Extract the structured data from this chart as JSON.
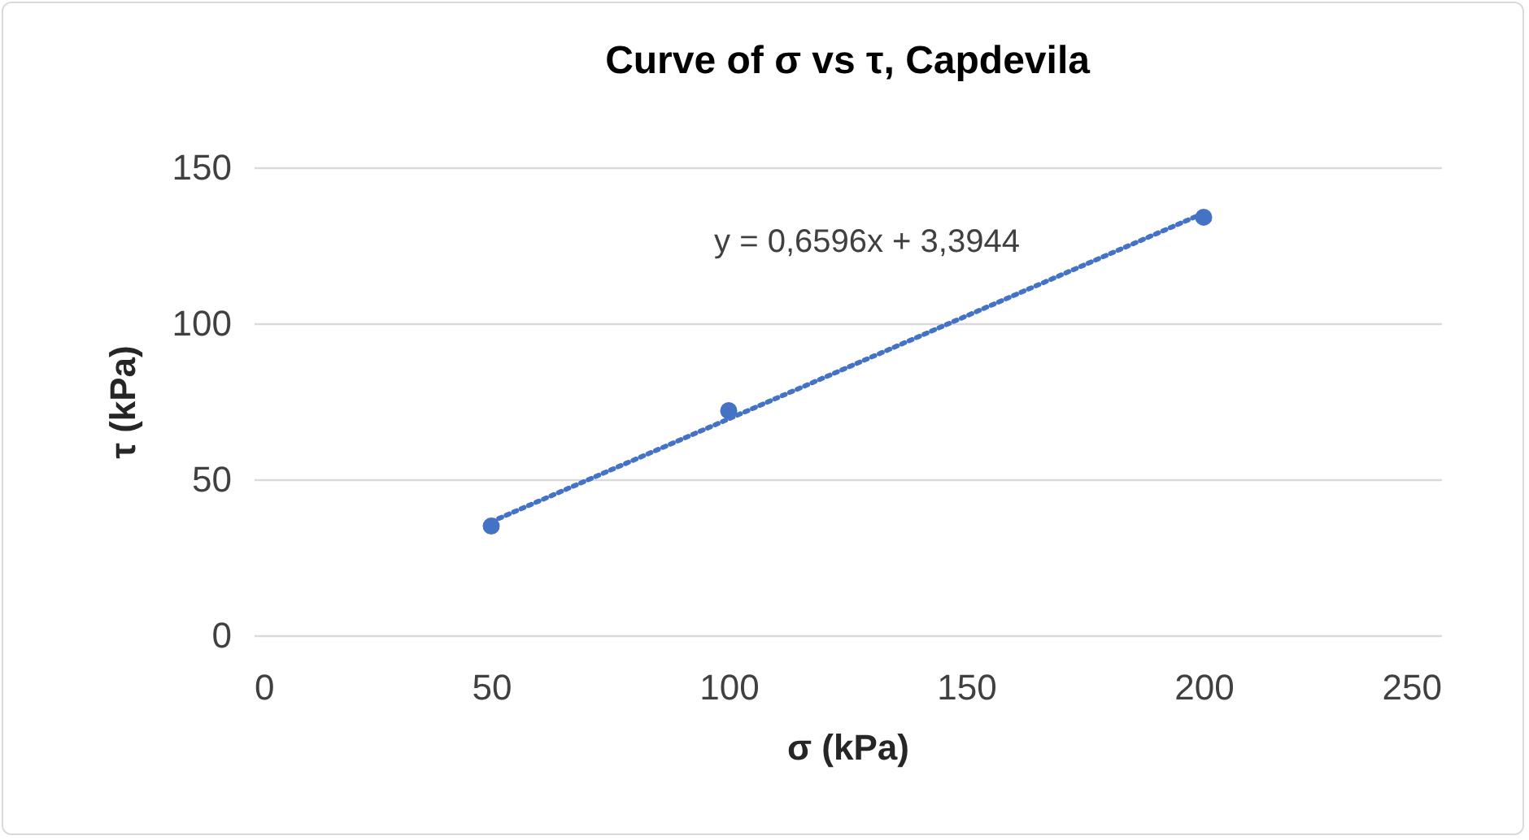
{
  "chart_data": {
    "type": "scatter",
    "title": "Curve of σ vs τ,  Capdevila",
    "xlabel": "σ (kPa)",
    "ylabel": "τ (kPa)",
    "x": [
      50,
      100,
      200
    ],
    "series": [
      {
        "color": "#4472c4",
        "values": [
          35,
          72,
          134
        ],
        "marker": "circle"
      },
      {
        "type": "line",
        "color": "#4472c4",
        "x": [
          50,
          200
        ],
        "values": [
          36.4,
          135.3
        ],
        "line_style": "dotted"
      }
    ],
    "annotations": [
      "y = 0,6596x + 3,3944"
    ],
    "xlim": [
      0,
      250
    ],
    "xticks": [
      0,
      50,
      100,
      150,
      200,
      250
    ],
    "ylim": [
      0,
      150
    ],
    "yticks": [
      0,
      50,
      100,
      150
    ],
    "grid": "y"
  }
}
